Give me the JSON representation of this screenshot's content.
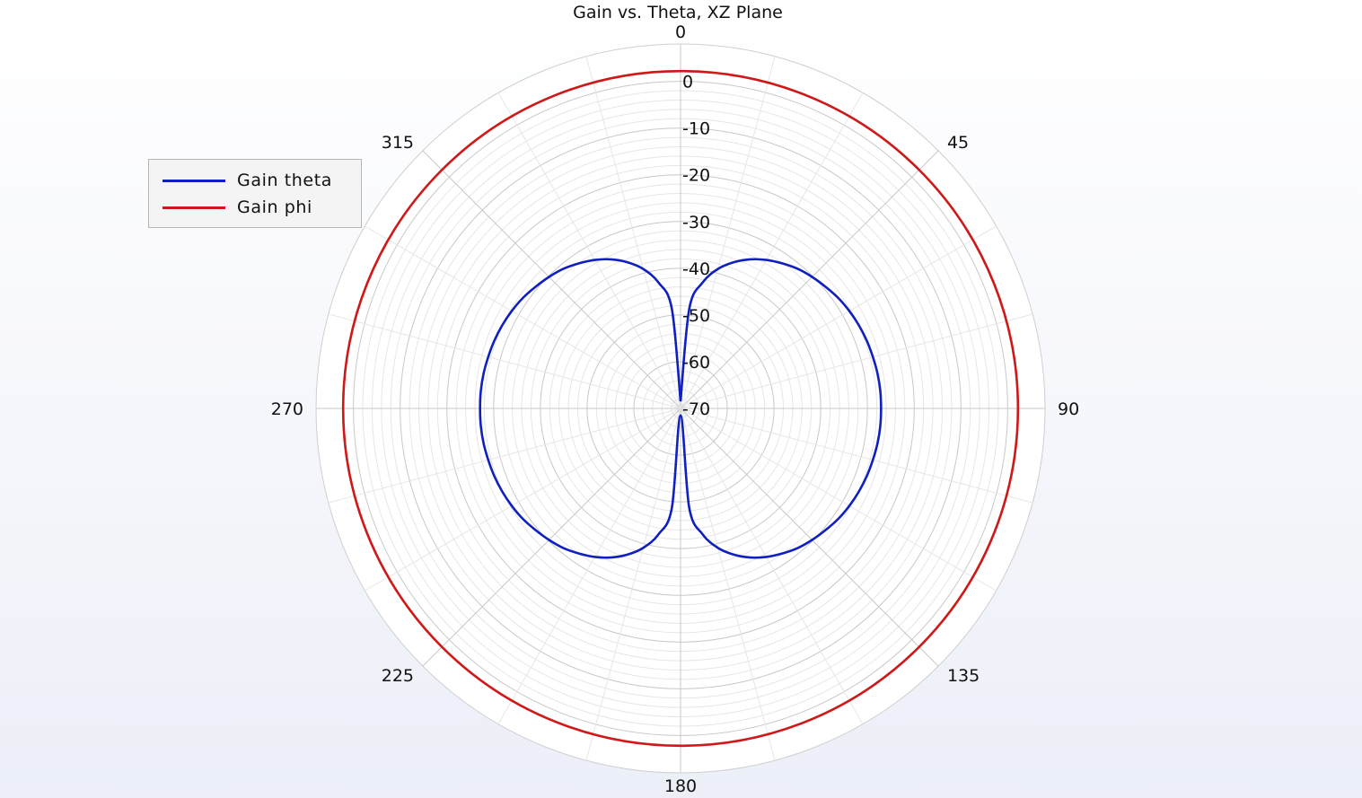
{
  "chart_data": {
    "type": "polar",
    "title": "Gain vs. Theta, XZ Plane",
    "angle_unit": "degrees",
    "angle_direction": "clockwise",
    "angle_zero": "top",
    "angular_ticks": [
      0,
      45,
      90,
      135,
      180,
      225,
      270,
      315
    ],
    "radial_range": [
      -70,
      3
    ],
    "radial_ticks": [
      0,
      -10,
      -20,
      -30,
      -40,
      -50,
      -60,
      -70
    ],
    "grid": true,
    "legend_position": "top-left",
    "series": [
      {
        "name": "Gain theta",
        "color": "#1020c0",
        "theta": [
          0,
          5,
          10,
          15,
          20,
          25,
          30,
          35,
          40,
          45,
          50,
          55,
          60,
          65,
          70,
          75,
          80,
          85,
          90,
          95,
          100,
          105,
          110,
          115,
          120,
          125,
          130,
          135,
          140,
          145,
          150,
          155,
          160,
          165,
          170,
          175,
          180,
          185,
          190,
          195,
          200,
          205,
          210,
          215,
          220,
          225,
          230,
          235,
          240,
          245,
          250,
          255,
          260,
          265,
          270,
          275,
          280,
          285,
          290,
          295,
          300,
          305,
          310,
          315,
          320,
          325,
          330,
          335,
          340,
          345,
          350,
          355,
          360
        ],
        "gain_db": [
          -68.5,
          -48.6,
          -42.6,
          -39.1,
          -36.7,
          -34.8,
          -33.3,
          -32.1,
          -31.0,
          -30.2,
          -29.5,
          -28.8,
          -28.3,
          -27.9,
          -27.6,
          -27.4,
          -27.2,
          -27.1,
          -27.1,
          -27.1,
          -27.2,
          -27.4,
          -27.6,
          -27.9,
          -28.3,
          -28.8,
          -29.5,
          -30.2,
          -31.0,
          -32.1,
          -33.3,
          -34.8,
          -36.7,
          -39.1,
          -42.6,
          -48.6,
          -68.5,
          -48.6,
          -42.6,
          -39.1,
          -36.7,
          -34.8,
          -33.3,
          -32.1,
          -31.0,
          -30.2,
          -29.5,
          -28.8,
          -28.3,
          -27.9,
          -27.6,
          -27.4,
          -27.2,
          -27.1,
          -27.1,
          -27.1,
          -27.2,
          -27.4,
          -27.6,
          -27.9,
          -28.3,
          -28.8,
          -29.5,
          -30.2,
          -31.0,
          -32.1,
          -33.3,
          -34.8,
          -36.7,
          -39.1,
          -42.6,
          -48.6,
          -68.5
        ]
      },
      {
        "name": "Gain phi",
        "color": "#d01818",
        "theta": [
          0,
          45,
          90,
          135,
          180,
          225,
          270,
          315,
          360
        ],
        "gain_db": [
          2.2,
          2.2,
          2.2,
          2.2,
          2.2,
          2.2,
          2.2,
          2.2,
          2.2
        ]
      }
    ]
  }
}
